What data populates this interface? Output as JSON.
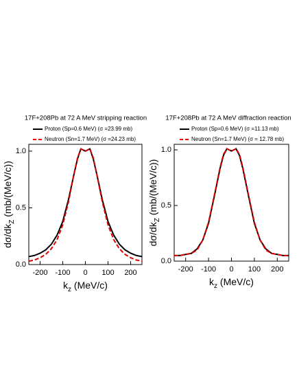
{
  "chart_data": [
    {
      "type": "line",
      "title": "17F+208Pb at 72 A MeV stripping reaction",
      "xlabel": [
        "k",
        "z",
        " (MeV/c)"
      ],
      "ylabel": [
        "dσ/dk",
        "Z",
        " (mb/(MeV/c))"
      ],
      "x": [
        -250,
        -225,
        -200,
        -175,
        -150,
        -125,
        -100,
        -75,
        -50,
        -35,
        -20,
        -10,
        0,
        10,
        20,
        35,
        50,
        75,
        100,
        125,
        150,
        175,
        200,
        225,
        250
      ],
      "series": [
        {
          "name": "Proton (Sp=0.6 MeV) (σ =23.99 mb)",
          "color": "#000000",
          "style": "solid",
          "values": [
            0.07,
            0.08,
            0.1,
            0.13,
            0.18,
            0.26,
            0.38,
            0.57,
            0.8,
            0.93,
            1.02,
            1.01,
            1.0,
            1.01,
            1.02,
            0.93,
            0.8,
            0.57,
            0.38,
            0.26,
            0.18,
            0.13,
            0.1,
            0.08,
            0.07
          ]
        },
        {
          "name": "Neutron (Sn=1.7 MeV) (σ =24.23 mb)",
          "color": "#e00000",
          "style": "dashed",
          "values": [
            0.03,
            0.04,
            0.06,
            0.09,
            0.14,
            0.22,
            0.35,
            0.55,
            0.8,
            0.94,
            1.02,
            1.01,
            1.0,
            1.01,
            1.02,
            0.94,
            0.8,
            0.55,
            0.35,
            0.22,
            0.14,
            0.09,
            0.06,
            0.04,
            0.03
          ]
        }
      ],
      "xlim": [
        -250,
        250
      ],
      "xticks": [
        -200,
        -100,
        0,
        100,
        200
      ],
      "ylim": [
        0,
        1.06
      ],
      "yticks": [
        {
          "value": 0,
          "label": "0.0"
        },
        {
          "value": 0.5,
          "label": "0.5"
        },
        {
          "value": 1,
          "label": "1.0"
        }
      ]
    },
    {
      "type": "line",
      "title": "17F+208Pb at 72 A MeV diffraction reaction",
      "xlabel": [
        "k",
        "z",
        " (MeV/c)"
      ],
      "ylabel": [
        "dσ/dk",
        "Z",
        " (mb/(MeV/c))"
      ],
      "x": [
        -250,
        -225,
        -200,
        -175,
        -150,
        -125,
        -100,
        -75,
        -50,
        -35,
        -20,
        -10,
        0,
        10,
        20,
        35,
        50,
        75,
        100,
        125,
        150,
        175,
        200,
        225,
        250
      ],
      "series": [
        {
          "name": "Proton (Sp=0.6 MeV) (σ =11.13 mb)",
          "color": "#000000",
          "style": "solid",
          "values": [
            0.05,
            0.05,
            0.06,
            0.07,
            0.11,
            0.19,
            0.34,
            0.58,
            0.83,
            0.95,
            1.01,
            1.0,
            0.99,
            1.0,
            1.01,
            0.95,
            0.83,
            0.58,
            0.34,
            0.19,
            0.11,
            0.07,
            0.06,
            0.05,
            0.05
          ]
        },
        {
          "name": "Neutron (Sn=1.7 MeV) (σ = 12.78 mb)",
          "color": "#e00000",
          "style": "dashed",
          "values": [
            0.05,
            0.05,
            0.06,
            0.07,
            0.1,
            0.19,
            0.35,
            0.59,
            0.84,
            0.96,
            1.01,
            1.0,
            0.99,
            1.0,
            1.01,
            0.96,
            0.84,
            0.59,
            0.35,
            0.19,
            0.1,
            0.07,
            0.06,
            0.05,
            0.05
          ]
        }
      ],
      "xlim": [
        -250,
        250
      ],
      "xticks": [
        -200,
        -100,
        0,
        100,
        200
      ],
      "ylim": [
        0,
        1.05
      ],
      "yticks": [
        {
          "value": 0,
          "label": "0.0"
        },
        {
          "value": 0.5,
          "label": "0.5"
        },
        {
          "value": 1,
          "label": "1.0"
        }
      ]
    }
  ]
}
